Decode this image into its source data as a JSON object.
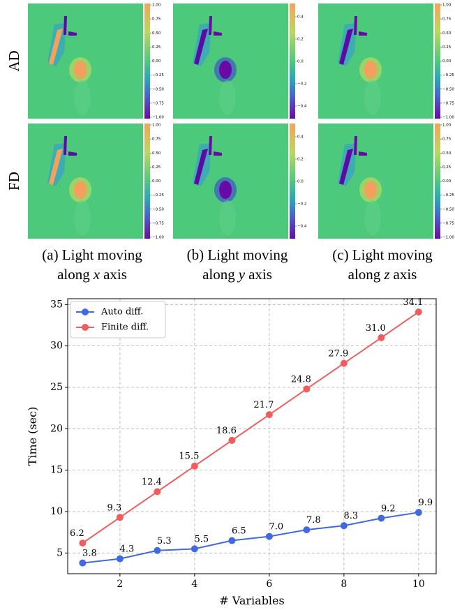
{
  "panels": {
    "row_labels": [
      "AD",
      "FD"
    ],
    "columns": [
      {
        "caption_line1": "(a) Light moving",
        "caption_along": "along",
        "caption_var": "x",
        "caption_axis": "axis",
        "colorbar_ticks": [
          "1.00",
          "0.75",
          "0.50",
          "0.25",
          "0.00",
          "−0.25",
          "−0.50",
          "−0.75",
          "−1.00"
        ]
      },
      {
        "caption_line1": "(b) Light moving",
        "caption_along": "along",
        "caption_var": "y",
        "caption_axis": "axis",
        "colorbar_ticks": [
          "0.4",
          "0.2",
          "0.0",
          "−0.2",
          "−0.4"
        ]
      },
      {
        "caption_line1": "(c) Light moving",
        "caption_along": "along",
        "caption_var": "z",
        "caption_axis": "axis",
        "colorbar_ticks": [
          "1.00",
          "0.75",
          "0.50",
          "0.25",
          "0.00",
          "−0.25",
          "−0.50",
          "−0.75",
          "−1.00"
        ]
      }
    ]
  },
  "chart_data": {
    "type": "line",
    "x_label": "# Variables",
    "y_label": "Time (sec)",
    "x": [
      1,
      2,
      3,
      4,
      5,
      6,
      7,
      8,
      9,
      10
    ],
    "series": [
      {
        "name": "Auto diff.",
        "color": "#4169e1",
        "values": [
          3.8,
          4.3,
          5.3,
          5.5,
          6.5,
          7.0,
          7.8,
          8.3,
          9.2,
          9.9
        ],
        "value_labels": [
          "3.8",
          "4.3",
          "5.3",
          "5.5",
          "6.5",
          "7.0",
          "7.8",
          "8.3",
          "9.2",
          "9.9"
        ]
      },
      {
        "name": "Finite diff.",
        "color": "#f25c5c",
        "values": [
          6.2,
          9.3,
          12.4,
          15.5,
          18.6,
          21.7,
          24.8,
          27.9,
          31.0,
          34.1
        ],
        "value_labels": [
          "6.2",
          "9.3",
          "12.4",
          "15.5",
          "18.6",
          "21.7",
          "24.8",
          "27.9",
          "31.0",
          "34.1"
        ]
      }
    ],
    "xlim": [
      0.6,
      10.47
    ],
    "ylim": [
      2.5,
      35.7
    ],
    "xticks": [
      2,
      4,
      6,
      8,
      10
    ],
    "yticks": [
      5,
      10,
      15,
      20,
      25,
      30,
      35
    ],
    "grid": true,
    "legend": "upper left"
  }
}
